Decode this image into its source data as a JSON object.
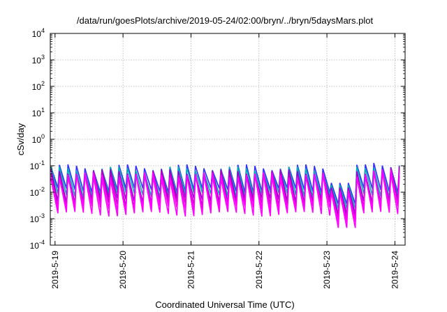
{
  "chart_data": {
    "type": "line",
    "title": "/data/run/goesPlots/archive/2019-05-24/02:00/bryn/../bryn/5daysMars.plot",
    "xlabel": "Coordinated Universal Time (UTC)",
    "ylabel": "cSv/day",
    "yscale": "log",
    "ylim_exponents": [
      -4,
      4
    ],
    "xlim_days": [
      -0.07,
      5.15
    ],
    "grid": true,
    "y_ticks": [
      {
        "base": "10",
        "exp": "4",
        "value": 10000
      },
      {
        "base": "10",
        "exp": "3",
        "value": 1000
      },
      {
        "base": "10",
        "exp": "2",
        "value": 100
      },
      {
        "base": "10",
        "exp": "1",
        "value": 10
      },
      {
        "base": "10",
        "exp": "0",
        "value": 1
      },
      {
        "base": "10",
        "exp": "-1",
        "value": 0.1
      },
      {
        "base": "10",
        "exp": "-2",
        "value": 0.01
      },
      {
        "base": "10",
        "exp": "-3",
        "value": 0.001
      },
      {
        "base": "10",
        "exp": "-4",
        "value": 0.0001
      }
    ],
    "x_ticks": [
      {
        "label": "2019-5-19",
        "day": 0
      },
      {
        "label": "2019-5-20",
        "day": 1
      },
      {
        "label": "2019-5-21",
        "day": 2
      },
      {
        "label": "2019-5-22",
        "day": 3
      },
      {
        "label": "2019-5-23",
        "day": 4
      },
      {
        "label": "2019-5-24",
        "day": 5
      }
    ],
    "series_style": {
      "colors": [
        "#ff00ff",
        "#c000c0",
        "#9400d3",
        "#00b0b0",
        "#3030ff",
        "#ff00ff"
      ],
      "description": "six overlapping sawtooth series, daily peaks ~0.05-0.15 cSv/day, troughs ~0.001-0.01 cSv/day, dip near 2019-5-23 03:00"
    },
    "series": [
      {
        "peak": 0.09,
        "trough": 0.012,
        "color": "#3030ff"
      },
      {
        "peak": 0.075,
        "trough": 0.008,
        "color": "#00b0b0"
      },
      {
        "peak": 0.06,
        "trough": 0.005,
        "color": "#9400d3"
      },
      {
        "peak": 0.05,
        "trough": 0.0035,
        "color": "#c000c0"
      },
      {
        "peak": 0.045,
        "trough": 0.0025,
        "color": "#ff00ff"
      },
      {
        "peak": 0.04,
        "trough": 0.0015,
        "color": "#ff00ff"
      }
    ]
  }
}
